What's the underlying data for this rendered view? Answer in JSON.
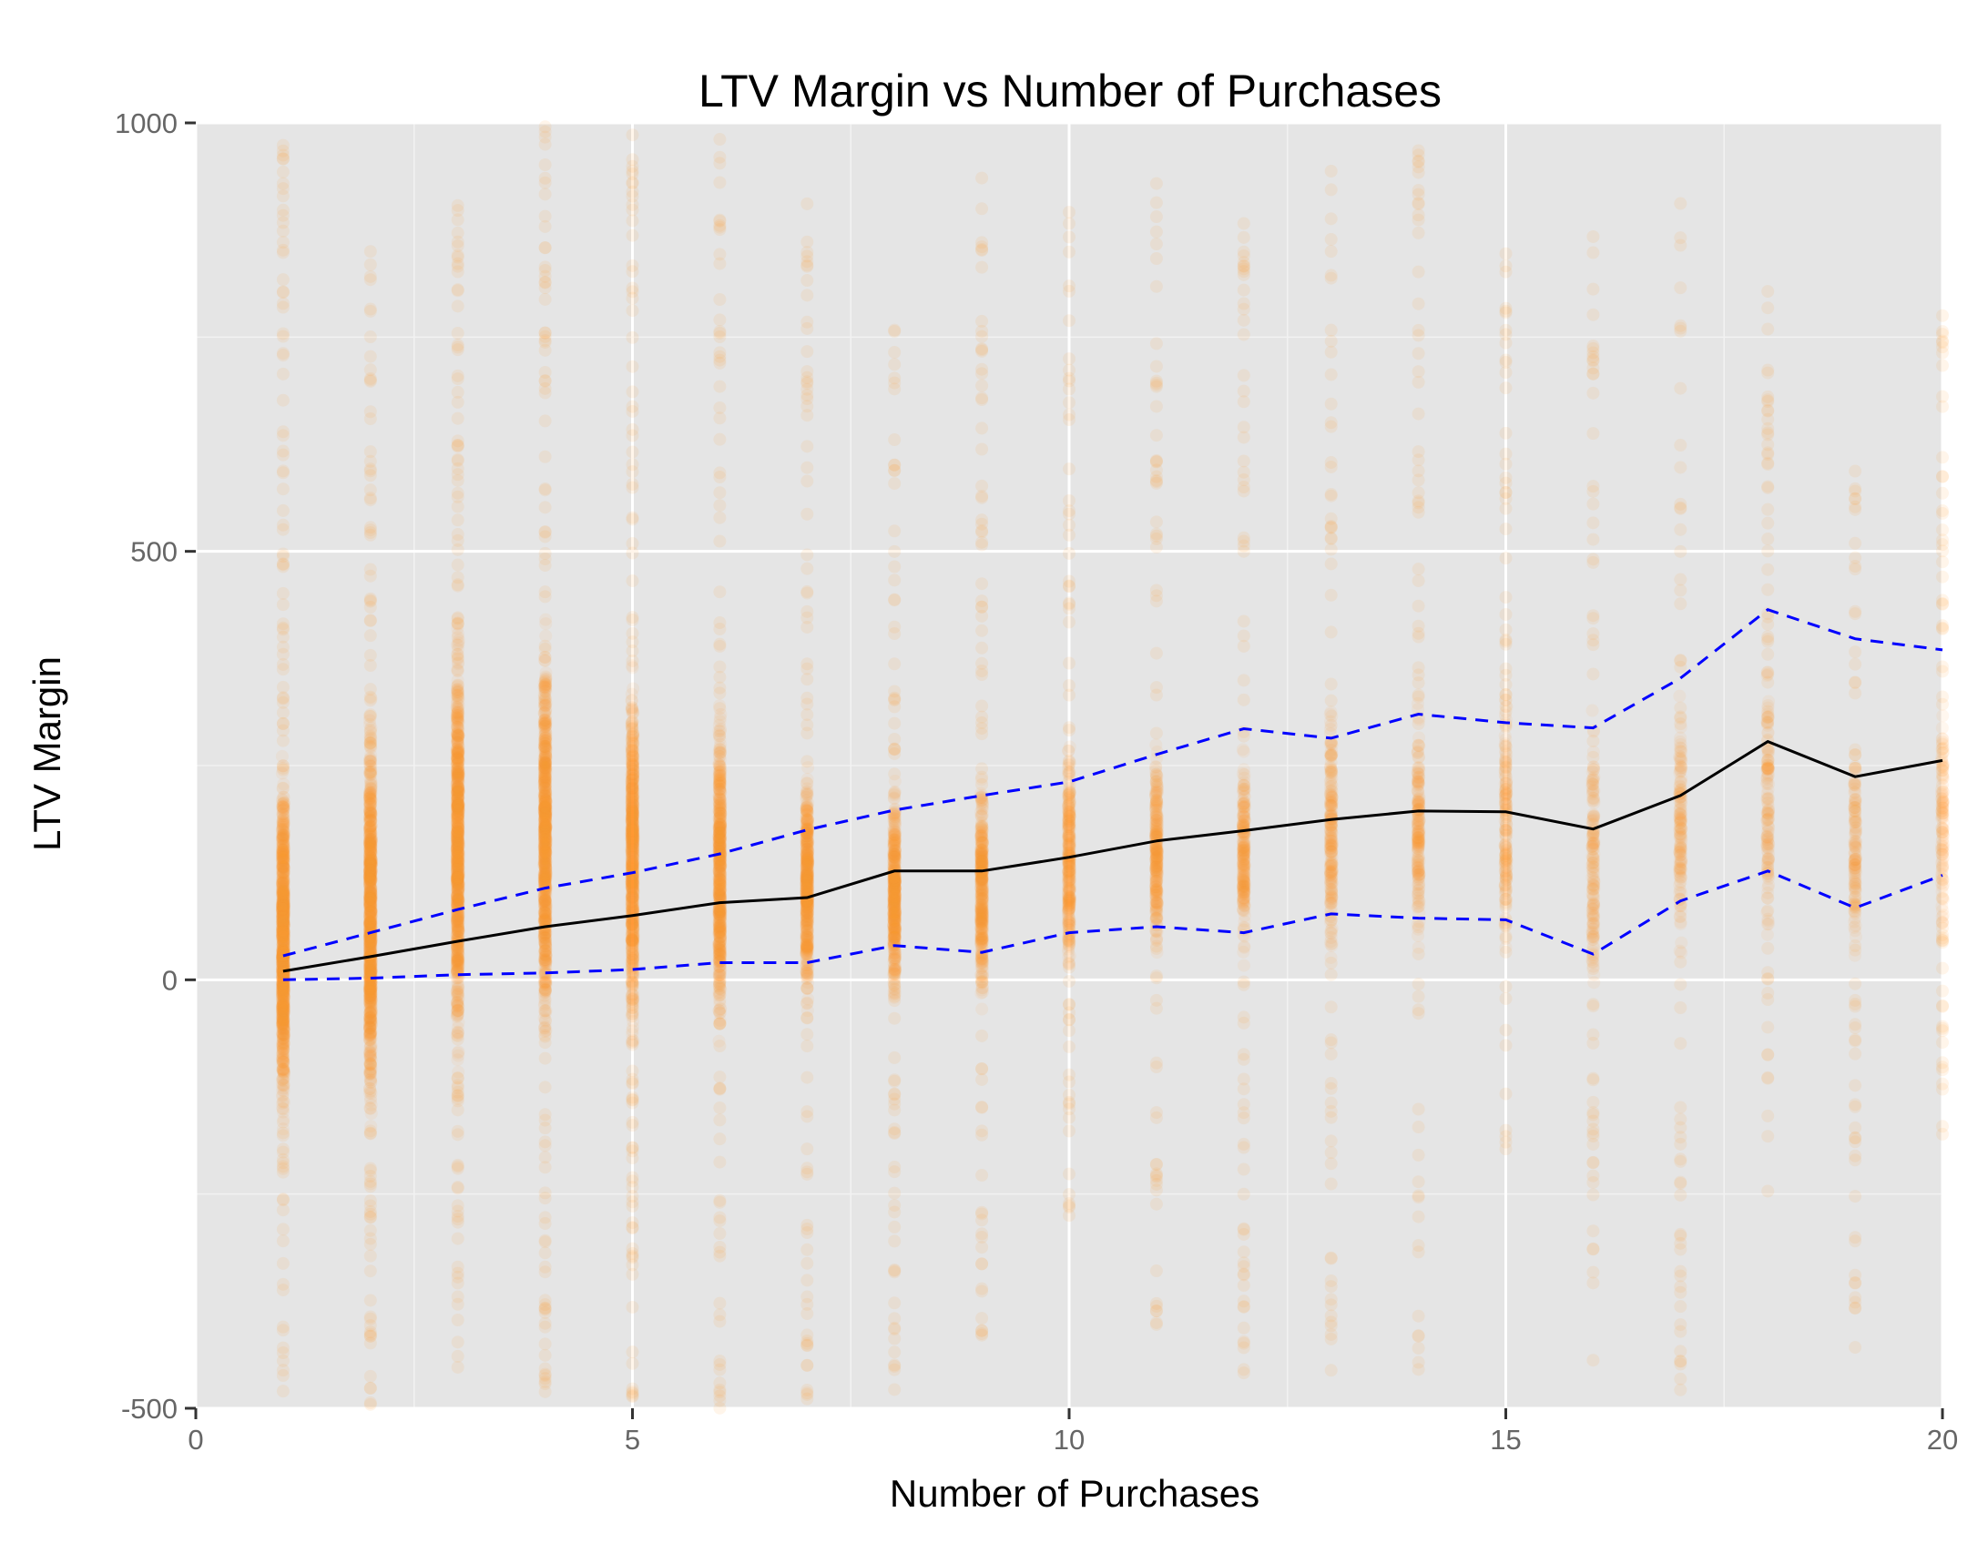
{
  "chart_data": {
    "type": "scatter",
    "title": "LTV Margin vs Number of Purchases",
    "xlabel": "Number of Purchases",
    "ylabel": "LTV Margin",
    "xlim": [
      0,
      20
    ],
    "ylim": [
      -500,
      1000
    ],
    "x_ticks": [
      "0",
      "5",
      "10",
      "15",
      "20"
    ],
    "y_ticks": [
      "-500",
      "0",
      "500",
      "1000"
    ],
    "x_tick_values": [
      0,
      5,
      10,
      15,
      20
    ],
    "y_tick_values": [
      -500,
      0,
      500,
      1000
    ],
    "grid": true,
    "background": "#e5e5e5",
    "point_color": "#ff9f2d",
    "mean_color": "#000000",
    "band_color": "#0000ff",
    "scatter_columns": [
      {
        "x": 1,
        "low": -500,
        "high": 1000,
        "dense_low": -200,
        "dense_high": 280,
        "density": 1.0
      },
      {
        "x": 2,
        "low": -500,
        "high": 850,
        "dense_low": -200,
        "dense_high": 350,
        "density": 0.95
      },
      {
        "x": 3,
        "low": -480,
        "high": 950,
        "dense_low": -150,
        "dense_high": 450,
        "density": 0.9
      },
      {
        "x": 4,
        "low": -500,
        "high": 1000,
        "dense_low": -120,
        "dense_high": 450,
        "density": 0.85
      },
      {
        "x": 5,
        "low": -500,
        "high": 1000,
        "dense_low": -110,
        "dense_high": 400,
        "density": 0.75
      },
      {
        "x": 6,
        "low": -500,
        "high": 990,
        "dense_low": -100,
        "dense_high": 350,
        "density": 0.6
      },
      {
        "x": 7,
        "low": -490,
        "high": 960,
        "dense_low": -60,
        "dense_high": 280,
        "density": 0.5
      },
      {
        "x": 8,
        "low": -480,
        "high": 760,
        "dense_low": -50,
        "dense_high": 250,
        "density": 0.45
      },
      {
        "x": 9,
        "low": -440,
        "high": 940,
        "dense_low": -50,
        "dense_high": 250,
        "density": 0.38
      },
      {
        "x": 10,
        "low": -330,
        "high": 920,
        "dense_low": -30,
        "dense_high": 300,
        "density": 0.3
      },
      {
        "x": 11,
        "low": -420,
        "high": 930,
        "dense_low": 0,
        "dense_high": 300,
        "density": 0.26
      },
      {
        "x": 12,
        "low": -470,
        "high": 920,
        "dense_low": 0,
        "dense_high": 300,
        "density": 0.22
      },
      {
        "x": 13,
        "low": -460,
        "high": 960,
        "dense_low": 0,
        "dense_high": 350,
        "density": 0.2
      },
      {
        "x": 14,
        "low": -490,
        "high": 970,
        "dense_low": 0,
        "dense_high": 350,
        "density": 0.18
      },
      {
        "x": 15,
        "low": -200,
        "high": 850,
        "dense_low": 0,
        "dense_high": 350,
        "density": 0.15
      },
      {
        "x": 16,
        "low": -460,
        "high": 880,
        "dense_low": -50,
        "dense_high": 350,
        "density": 0.14
      },
      {
        "x": 17,
        "low": -480,
        "high": 930,
        "dense_low": 0,
        "dense_high": 350,
        "density": 0.13
      },
      {
        "x": 18,
        "low": -250,
        "high": 860,
        "dense_low": 0,
        "dense_high": 400,
        "density": 0.12
      },
      {
        "x": 19,
        "low": -430,
        "high": 600,
        "dense_low": 0,
        "dense_high": 300,
        "density": 0.11
      },
      {
        "x": 20,
        "low": -200,
        "high": 820,
        "dense_low": 0,
        "dense_high": 350,
        "density": 0.1
      }
    ],
    "series": [
      {
        "style": "solid",
        "x": [
          1,
          2,
          3,
          4,
          5,
          6,
          7,
          8,
          9,
          10,
          11,
          12,
          13,
          14,
          15,
          16,
          17,
          18,
          19,
          20
        ],
        "values": [
          10,
          27,
          45,
          62,
          75,
          90,
          96,
          127,
          127,
          143,
          162,
          174,
          187,
          197,
          196,
          176,
          215,
          278,
          237,
          256
        ]
      },
      {
        "style": "dashed",
        "x": [
          1,
          2,
          3,
          4,
          5,
          6,
          7,
          8,
          9,
          10,
          11,
          12,
          13,
          14,
          15,
          16,
          17,
          18,
          19,
          20
        ],
        "values": [
          28,
          55,
          82,
          107,
          125,
          147,
          175,
          198,
          215,
          231,
          263,
          293,
          282,
          310,
          300,
          294,
          352,
          432,
          398,
          385
        ]
      },
      {
        "style": "dashed",
        "x": [
          1,
          2,
          3,
          4,
          5,
          6,
          7,
          8,
          9,
          10,
          11,
          12,
          13,
          14,
          15,
          16,
          17,
          18,
          19,
          20
        ],
        "values": [
          0,
          2,
          6,
          8,
          12,
          20,
          20,
          40,
          32,
          55,
          62,
          55,
          77,
          72,
          70,
          30,
          92,
          127,
          84,
          122
        ]
      }
    ]
  }
}
